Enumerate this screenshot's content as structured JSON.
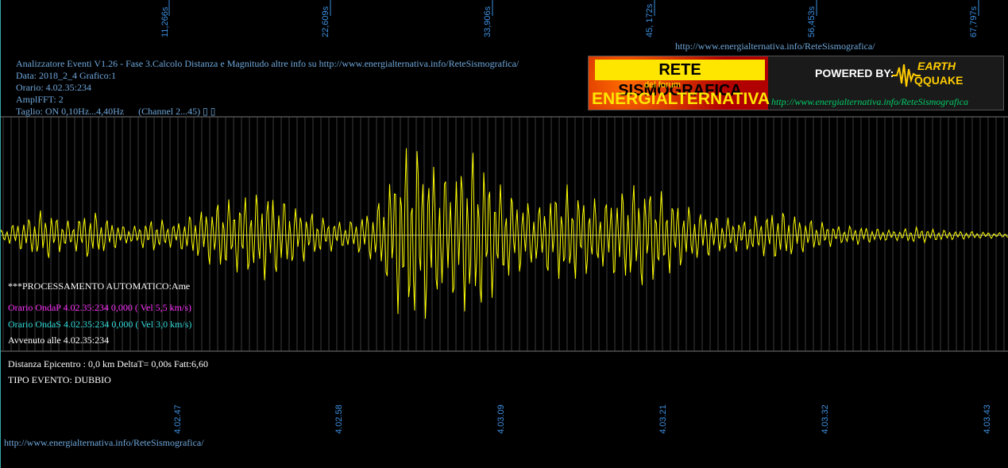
{
  "header": {
    "title_line": "Analizzatore Eventi V1.26 - Fase 3.Calcolo Distanza e Magnitudo altre info su http://www.energialternativa.info/ReteSismografica/",
    "data_line": "Data: 2018_2_4 Grafico:1",
    "orario_line": "Orario: 4.02.35:234",
    "ampl_line": "AmplFFT: 2",
    "taglio_line": "Taglio: ON 0,10Hz...4,40Hz      (Channel 2...45) ▯ ▯"
  },
  "top_url": "http://www.energialternativa.info/ReteSismografica/",
  "bottom_url": "http://www.energialternativa.info/ReteSismografica/",
  "logo": {
    "title": "RETE SISMOGRAFICA",
    "forum": "del forum",
    "brand": "ENERGIALTERNATIVA",
    "powered": "POWERED BY:",
    "earth": "EARTH",
    "quake": "QQUAKE",
    "url": "http://www.energialternativa.info/ReteSismografica"
  },
  "processing": {
    "auto": "***PROCESSAMENTO AUTOMATICO:Ame",
    "onda_p": "Orario OndaP 4.02.35:234  0,000 ( Vel 5,5 km/s)",
    "onda_s": "Orario OndaS 4.02.35:234  0,000 ( Vel 3,0 km/s)",
    "avvenuto": "Avvenuto alle 4.02.35:234",
    "distanza": "Distanza Epicentro : 0,0 km DeltaT= 0,00s  Fatt:6,60",
    "tipo": "TIPO EVENTO: DUBBIO"
  },
  "colors": {
    "background": "#000000",
    "trace": "#ffff00",
    "grid": "#555555",
    "axis_labels": "#3d8fe0",
    "onda_p": "#ff33ff",
    "onda_s": "#33dddd"
  },
  "chart_data": {
    "type": "line",
    "top_axis_ticks": [
      "11,266s",
      "22,609s",
      "33,906s",
      "45, 172s",
      "56,453s",
      "67,797s"
    ],
    "bottom_axis_ticks": [
      "4.02.47",
      "4.02.58",
      "4.03.09",
      "4.03.21",
      "4.03.32",
      "4.03.43"
    ],
    "grid": true,
    "series": [
      {
        "values": [
          0.05,
          -0.12,
          0.18,
          -0.22,
          0.3,
          -0.28,
          0.2,
          -0.15,
          0.25,
          -0.3,
          0.22,
          -0.18,
          0.12,
          -0.1,
          0.15,
          -0.2,
          0.18,
          -0.14,
          0.2,
          -0.26,
          0.32,
          -0.38,
          0.45,
          -0.4,
          0.5,
          -0.48,
          0.55,
          -0.5,
          0.42,
          -0.35,
          0.3,
          -0.25,
          0.2,
          -0.18,
          0.15,
          -0.2,
          0.28,
          -0.35,
          0.6,
          -0.9,
          1.05,
          -1.1,
          0.95,
          -0.8,
          0.7,
          -0.85,
          1.0,
          -0.95,
          0.8,
          -0.6,
          0.55,
          -0.45,
          0.4,
          -0.35,
          0.5,
          -0.55,
          0.6,
          -0.5,
          0.45,
          -0.4,
          0.48,
          -0.55,
          0.6,
          -0.62,
          0.58,
          -0.5,
          0.45,
          -0.38,
          0.32,
          -0.28,
          0.25,
          -0.22,
          0.2,
          -0.18,
          0.22,
          -0.25,
          0.3,
          -0.28,
          0.25,
          -0.2,
          0.18,
          -0.15,
          0.12,
          -0.1,
          0.12,
          -0.1,
          0.08,
          -0.07,
          0.06,
          -0.08,
          0.1,
          -0.08,
          0.07,
          -0.06,
          0.05,
          -0.05,
          0.04,
          -0.04,
          0.03,
          -0.03
        ],
        "color": "#ffff00"
      }
    ]
  }
}
